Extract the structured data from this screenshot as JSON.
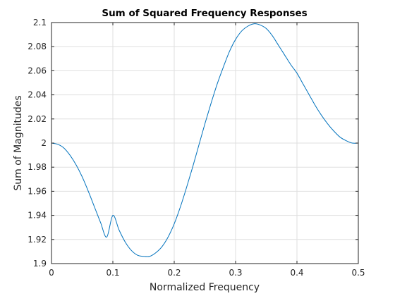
{
  "chart_data": {
    "type": "line",
    "title": "Sum of Squared Frequency Responses",
    "xlabel": "Normalized Frequency",
    "ylabel": "Sum of Magnitudes",
    "xlim": [
      0,
      0.5
    ],
    "ylim": [
      1.9,
      2.1
    ],
    "xticks": [
      "0",
      "0.1",
      "0.2",
      "0.3",
      "0.4",
      "0.5"
    ],
    "yticks": [
      "1.9",
      "1.92",
      "1.94",
      "1.96",
      "1.98",
      "2",
      "2.02",
      "2.04",
      "2.06",
      "2.08",
      "2.1"
    ],
    "grid": true,
    "box": true,
    "series": [
      {
        "color": "#0072BD",
        "x": [
          0,
          0.01,
          0.02,
          0.03,
          0.04,
          0.05,
          0.06,
          0.07,
          0.08,
          0.09,
          0.1,
          0.11,
          0.12,
          0.13,
          0.14,
          0.15,
          0.16,
          0.17,
          0.18,
          0.19,
          0.2,
          0.21,
          0.22,
          0.23,
          0.24,
          0.25,
          0.26,
          0.27,
          0.28,
          0.29,
          0.3,
          0.31,
          0.32,
          0.33,
          0.34,
          0.35,
          0.36,
          0.37,
          0.38,
          0.39,
          0.4,
          0.41,
          0.42,
          0.43,
          0.44,
          0.45,
          0.46,
          0.47,
          0.48,
          0.49,
          0.5
        ],
        "y": [
          2.0,
          1.999,
          1.996,
          1.99,
          1.982,
          1.972,
          1.96,
          1.947,
          1.934,
          1.922,
          1.94,
          1.928,
          1.918,
          1.911,
          1.907,
          1.906,
          1.906,
          1.909,
          1.914,
          1.922,
          1.933,
          1.947,
          1.963,
          1.98,
          1.998,
          2.016,
          2.033,
          2.049,
          2.063,
          2.076,
          2.086,
          2.093,
          2.097,
          2.099,
          2.098,
          2.095,
          2.089,
          2.081,
          2.073,
          2.065,
          2.058,
          2.049,
          2.04,
          2.031,
          2.023,
          2.016,
          2.01,
          2.005,
          2.002,
          2.0,
          2.0
        ]
      }
    ]
  }
}
